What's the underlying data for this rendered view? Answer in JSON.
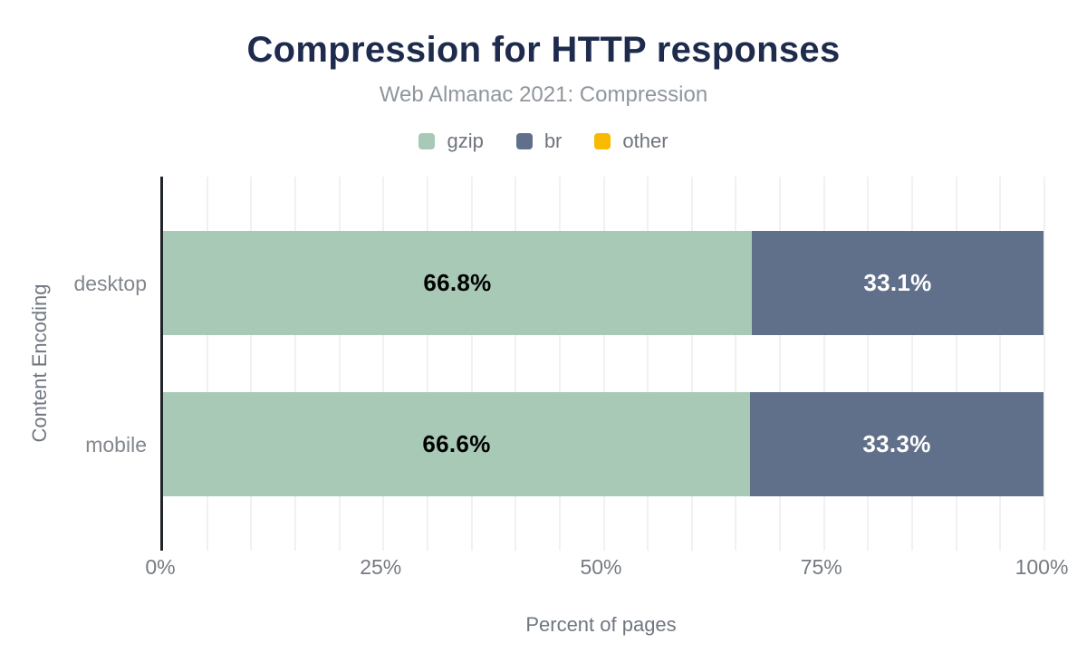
{
  "chart_data": {
    "type": "bar",
    "orientation": "horizontal",
    "stacked": true,
    "title": "Compression for HTTP responses",
    "subtitle": "Web Almanac 2021: Compression",
    "xlabel": "Percent of pages",
    "ylabel": "Content Encoding",
    "categories": [
      "desktop",
      "mobile"
    ],
    "series": [
      {
        "name": "gzip",
        "color": "#a7c9b6",
        "label_color": "#000000",
        "values": [
          66.8,
          66.6
        ]
      },
      {
        "name": "br",
        "color": "#61708a",
        "label_color": "#ffffff",
        "values": [
          33.1,
          33.3
        ]
      },
      {
        "name": "other",
        "color": "#f9ba00",
        "label_color": "#000000",
        "values": [
          0,
          0
        ]
      }
    ],
    "xlim": [
      0,
      100
    ],
    "x_ticks": [
      {
        "label": "0%",
        "value": 0
      },
      {
        "label": "25%",
        "value": 25
      },
      {
        "label": "50%",
        "value": 50
      },
      {
        "label": "75%",
        "value": 75
      },
      {
        "label": "100%",
        "value": 100
      }
    ],
    "grid": {
      "minor_step_percent": 5,
      "color": "#f1f1f1"
    },
    "legend_position": "top",
    "colors": {
      "title": "#1e2b4d",
      "subtitle": "#8f969d",
      "axis_line": "#212529",
      "axis_text": "#767b82"
    }
  }
}
